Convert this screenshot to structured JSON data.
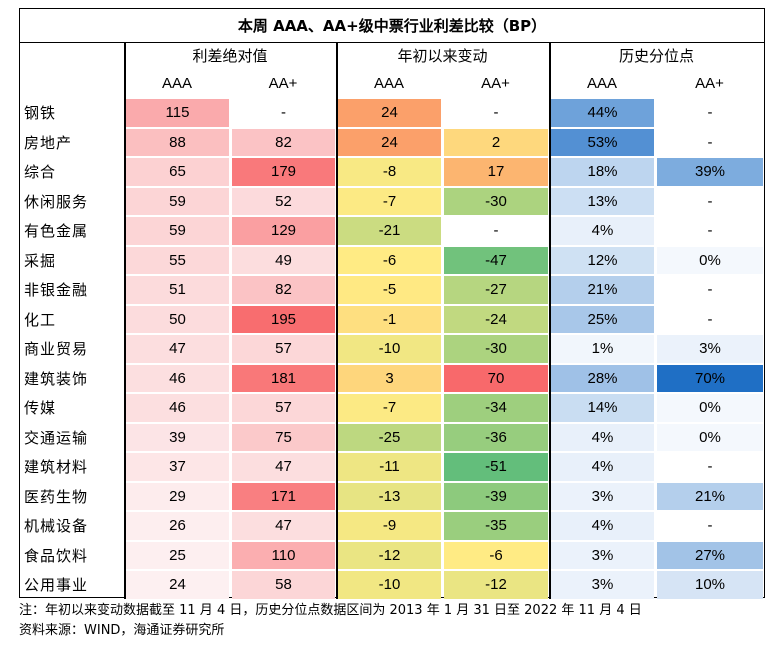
{
  "title": "本周 AAA、AA+级中票行业利差比较（BP）",
  "groups": [
    "利差绝对值",
    "年初以来变动",
    "历史分位点"
  ],
  "sub_headers": [
    "AAA",
    "AA+",
    "AAA",
    "AA+",
    "AAA",
    "AA+"
  ],
  "rows": [
    {
      "name": "钢铁",
      "spread_aaa": "115",
      "spread_aa": "-",
      "chg_aaa": "24",
      "chg_aa": "-",
      "pct_aaa": "44%",
      "pct_aa": "-"
    },
    {
      "name": "房地产",
      "spread_aaa": "88",
      "spread_aa": "82",
      "chg_aaa": "24",
      "chg_aa": "2",
      "pct_aaa": "53%",
      "pct_aa": "-"
    },
    {
      "name": "综合",
      "spread_aaa": "65",
      "spread_aa": "179",
      "chg_aaa": "-8",
      "chg_aa": "17",
      "pct_aaa": "18%",
      "pct_aa": "39%"
    },
    {
      "name": "休闲服务",
      "spread_aaa": "59",
      "spread_aa": "52",
      "chg_aaa": "-7",
      "chg_aa": "-30",
      "pct_aaa": "13%",
      "pct_aa": "-"
    },
    {
      "name": "有色金属",
      "spread_aaa": "59",
      "spread_aa": "129",
      "chg_aaa": "-21",
      "chg_aa": "-",
      "pct_aaa": "4%",
      "pct_aa": "-"
    },
    {
      "name": "采掘",
      "spread_aaa": "55",
      "spread_aa": "49",
      "chg_aaa": "-6",
      "chg_aa": "-47",
      "pct_aaa": "12%",
      "pct_aa": "0%"
    },
    {
      "name": "非银金融",
      "spread_aaa": "51",
      "spread_aa": "82",
      "chg_aaa": "-5",
      "chg_aa": "-27",
      "pct_aaa": "21%",
      "pct_aa": "-"
    },
    {
      "name": "化工",
      "spread_aaa": "50",
      "spread_aa": "195",
      "chg_aaa": "-1",
      "chg_aa": "-24",
      "pct_aaa": "25%",
      "pct_aa": "-"
    },
    {
      "name": "商业贸易",
      "spread_aaa": "47",
      "spread_aa": "57",
      "chg_aaa": "-10",
      "chg_aa": "-30",
      "pct_aaa": "1%",
      "pct_aa": "3%"
    },
    {
      "name": "建筑装饰",
      "spread_aaa": "46",
      "spread_aa": "181",
      "chg_aaa": "3",
      "chg_aa": "70",
      "pct_aaa": "28%",
      "pct_aa": "70%"
    },
    {
      "name": "传媒",
      "spread_aaa": "46",
      "spread_aa": "57",
      "chg_aaa": "-7",
      "chg_aa": "-34",
      "pct_aaa": "14%",
      "pct_aa": "0%"
    },
    {
      "name": "交通运输",
      "spread_aaa": "39",
      "spread_aa": "75",
      "chg_aaa": "-25",
      "chg_aa": "-36",
      "pct_aaa": "4%",
      "pct_aa": "0%"
    },
    {
      "name": "建筑材料",
      "spread_aaa": "37",
      "spread_aa": "47",
      "chg_aaa": "-11",
      "chg_aa": "-51",
      "pct_aaa": "4%",
      "pct_aa": "-"
    },
    {
      "name": "医药生物",
      "spread_aaa": "29",
      "spread_aa": "171",
      "chg_aaa": "-13",
      "chg_aa": "-39",
      "pct_aaa": "3%",
      "pct_aa": "21%"
    },
    {
      "name": "机械设备",
      "spread_aaa": "26",
      "spread_aa": "47",
      "chg_aaa": "-9",
      "chg_aa": "-35",
      "pct_aaa": "4%",
      "pct_aa": "-"
    },
    {
      "name": "食品饮料",
      "spread_aaa": "25",
      "spread_aa": "110",
      "chg_aaa": "-12",
      "chg_aa": "-6",
      "pct_aaa": "3%",
      "pct_aa": "27%"
    },
    {
      "name": "公用事业",
      "spread_aaa": "24",
      "spread_aa": "58",
      "chg_aaa": "-10",
      "chg_aa": "-12",
      "pct_aaa": "3%",
      "pct_aa": "10%"
    }
  ],
  "note": "注：年初以来变动数据截至 11 月 4 日，历史分位点数据区间为 2013 年 1 月 31 日至 2022 年 11 月 4 日",
  "source": "资料来源：WIND，海通证券研究所"
}
